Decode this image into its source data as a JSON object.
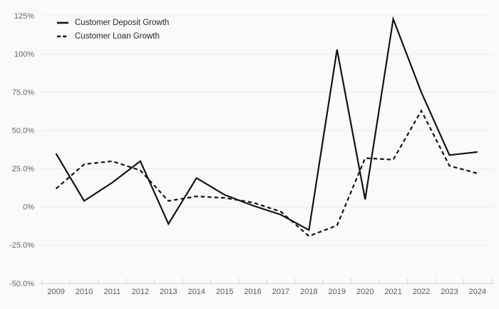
{
  "chart_data": {
    "type": "line",
    "title": "",
    "xlabel": "",
    "ylabel": "",
    "unit": "percent",
    "x": [
      2009,
      2010,
      2011,
      2012,
      2013,
      2014,
      2015,
      2016,
      2017,
      2018,
      2019,
      2020,
      2021,
      2022,
      2023,
      2024
    ],
    "series": [
      {
        "name": "Customer Deposit Growth",
        "style": "solid",
        "color": "#141414",
        "values": [
          35,
          4,
          16,
          30,
          -11,
          19,
          8,
          1,
          -5,
          -15,
          103,
          5,
          123,
          75,
          34,
          36
        ]
      },
      {
        "name": "Customer Loan Growth",
        "style": "dashed",
        "color": "#141414",
        "values": [
          12,
          28,
          30,
          24,
          4,
          7,
          6,
          3,
          -3,
          -19,
          -12,
          32,
          31,
          63,
          27,
          22
        ]
      }
    ],
    "ylim": [
      -50,
      125
    ],
    "yticks": [
      {
        "value": 125,
        "label": "125%"
      },
      {
        "value": 100,
        "label": "100%"
      },
      {
        "value": 75,
        "label": "75.0%"
      },
      {
        "value": 50,
        "label": "50.0%"
      },
      {
        "value": 25,
        "label": "25.0%"
      },
      {
        "value": 0,
        "label": "0%"
      },
      {
        "value": -25,
        "label": "-25.0%"
      },
      {
        "value": -50,
        "label": "-50.0%"
      }
    ],
    "grid": "horizontal",
    "legend_position": "top-left",
    "colors": {
      "background": "#fafafa",
      "grid": "#e9eaeb",
      "axis": "#ccd3df",
      "tick_label": "#63666b",
      "line": "#141414"
    }
  }
}
